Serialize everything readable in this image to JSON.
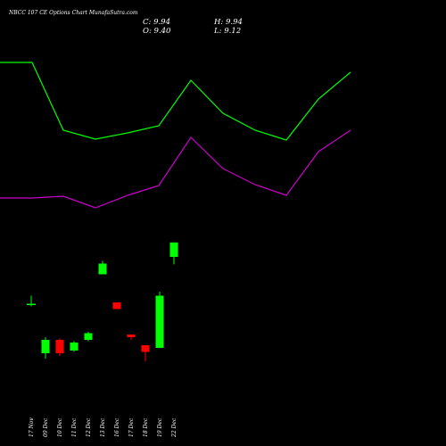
{
  "chart_data": {
    "type": "candlestick",
    "title": "NBCC 107 CE Options Chart MunafaSutra.com",
    "ohlc_readout": {
      "c": "C: 9.94",
      "h": "H: 9.94",
      "o": "O: 9.40",
      "l": "L: 9.12"
    },
    "dates": [
      "17 Nov",
      "09 Dec",
      "10 Dec",
      "11 Dec",
      "12 Dec",
      "13 Dec",
      "16 Dec",
      "17 Dec",
      "18 Dec",
      "19 Dec",
      "22 Dec"
    ],
    "candles": [
      {
        "open": 7.65,
        "high": 7.95,
        "low": 7.55,
        "close": 7.6,
        "color": "#00ff00"
      },
      {
        "open": 5.8,
        "high": 6.4,
        "low": 5.6,
        "close": 6.3,
        "color": "#00ff00"
      },
      {
        "open": 6.3,
        "high": 6.35,
        "low": 5.7,
        "close": 5.8,
        "color": "#ff0000"
      },
      {
        "open": 5.9,
        "high": 6.25,
        "low": 5.85,
        "close": 6.2,
        "color": "#00ff00"
      },
      {
        "open": 6.3,
        "high": 6.6,
        "low": 6.25,
        "close": 6.55,
        "color": "#00ff00"
      },
      {
        "open": 8.75,
        "high": 9.25,
        "low": 8.75,
        "close": 9.15,
        "color": "#00ff00"
      },
      {
        "open": 7.7,
        "high": 7.7,
        "low": 7.45,
        "close": 7.45,
        "color": "#ff0000"
      },
      {
        "open": 6.5,
        "high": 6.5,
        "low": 6.3,
        "close": 6.4,
        "color": "#ff0000"
      },
      {
        "open": 6.1,
        "high": 6.1,
        "low": 5.5,
        "close": 5.85,
        "color": "#ff0000"
      },
      {
        "open": 6.0,
        "high": 8.1,
        "low": 6.0,
        "close": 7.95,
        "color": "#00ff00"
      },
      {
        "open": 9.4,
        "high": 9.94,
        "low": 9.12,
        "close": 9.94,
        "color": "#00ff00"
      }
    ],
    "overlay_lines": [
      {
        "color": "#00ff00",
        "values": [
          70,
          70,
          146,
          156,
          149,
          141,
          90,
          127,
          146,
          157,
          111,
          81
        ]
      },
      {
        "color": "#cc00cc",
        "values": [
          222,
          222,
          220,
          233,
          219,
          208,
          154,
          189,
          207,
          219,
          170,
          146
        ]
      }
    ],
    "ylim": [
      5.0,
      10.5
    ]
  }
}
